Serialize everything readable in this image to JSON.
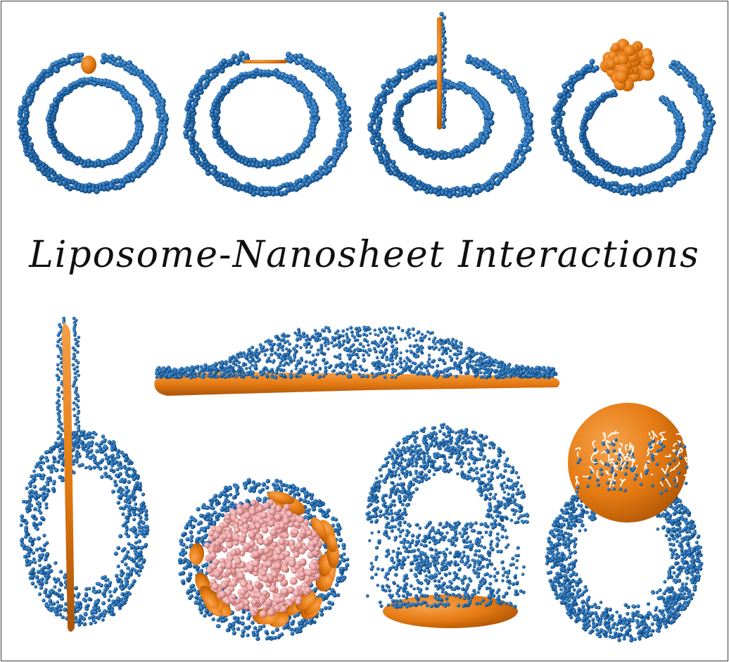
{
  "figure": {
    "title": "Liposome-Nanosheet Interactions",
    "colors": {
      "lipid": "#1f66a8",
      "lipid_dark": "#0f3f70",
      "nanosheet": "#e57a12",
      "nanosheet_dark": "#b55a06",
      "core": "#e6a0a0",
      "core_dark": "#c07272",
      "tail": "#ffffff",
      "frame": "#3a3a3a"
    },
    "panels": [
      {
        "name": "vesicle-small-particle",
        "icon": "small-spherical-nanoparticle"
      },
      {
        "name": "vesicle-flat-sheet",
        "icon": "flat-nanosheet"
      },
      {
        "name": "vesicle-inserted-sheet",
        "icon": "vertically-inserted-nanosheet"
      },
      {
        "name": "vesicle-aggregate",
        "icon": "nanoparticle-aggregate"
      },
      {
        "name": "vertical-sheet-vesicle",
        "icon": "vertical-nanosheet"
      },
      {
        "name": "spread-bilayer-on-sheet",
        "icon": "horizontal-nanosheet"
      },
      {
        "name": "wrapped-core-vesicle",
        "icon": "embedded-nanodisks"
      },
      {
        "name": "vesicle-on-disk",
        "icon": "supporting-nanodisk"
      },
      {
        "name": "disk-with-lipid-tails",
        "icon": "large-nanodisk"
      }
    ]
  }
}
